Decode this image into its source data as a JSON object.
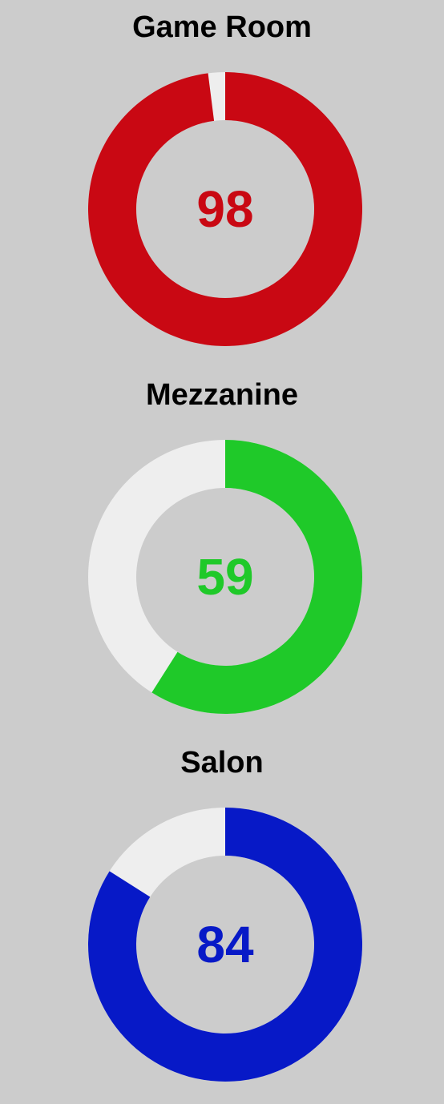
{
  "track_color": "#eeeeee",
  "background_color": "#cccccc",
  "chart_data": [
    {
      "type": "pie",
      "title": "Game Room",
      "value": 98,
      "max": 100,
      "value_label": "98",
      "color": "#c90813"
    },
    {
      "type": "pie",
      "title": "Mezzanine",
      "value": 59,
      "max": 100,
      "value_label": "59",
      "color": "#1fc929"
    },
    {
      "type": "pie",
      "title": "Salon",
      "value": 84,
      "max": 100,
      "value_label": "84",
      "color": "#0719c7"
    }
  ]
}
